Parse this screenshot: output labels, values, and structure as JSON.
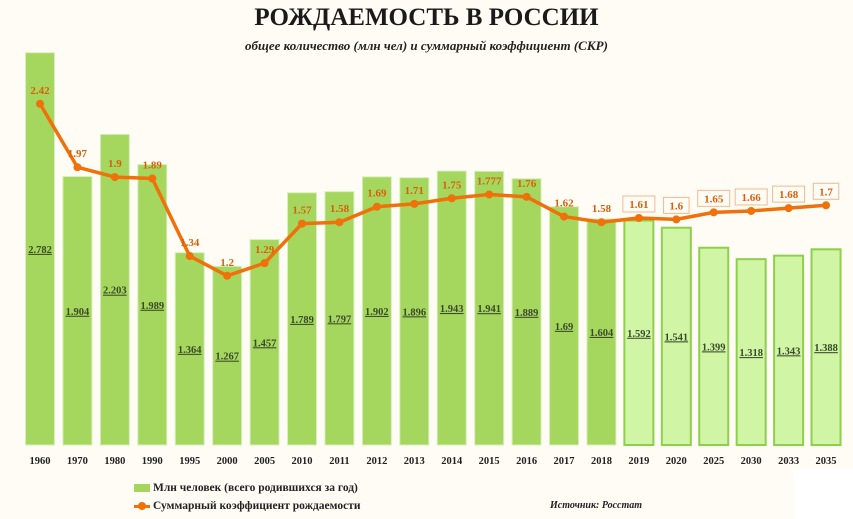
{
  "chart_data": {
    "type": "bar",
    "title": "РОЖДАЕМОСТЬ В РОССИИ",
    "subtitle": "общее количество (млн чел) и суммарный коэффициент (СКР)",
    "categories": [
      "1960",
      "1970",
      "1980",
      "1990",
      "1995",
      "2000",
      "2005",
      "2010",
      "2011",
      "2012",
      "2013",
      "2014",
      "2015",
      "2016",
      "2017",
      "2018",
      "2019",
      "2020",
      "2025",
      "2030",
      "2033",
      "2035"
    ],
    "series": [
      {
        "name": "Млн человек (всего родившихся за год)",
        "type": "bar",
        "values": [
          2.782,
          1.904,
          2.203,
          1.989,
          1.364,
          1.267,
          1.457,
          1.789,
          1.797,
          1.902,
          1.896,
          1.943,
          1.941,
          1.889,
          1.69,
          1.604,
          1.592,
          1.541,
          1.399,
          1.318,
          1.343,
          1.388
        ],
        "color": "#a5d65d",
        "forecast_color": "#d0f5a4",
        "forecast_from": "2019"
      },
      {
        "name": "Суммарный коэффициент рождаемости",
        "type": "line",
        "values": [
          2.42,
          1.97,
          1.9,
          1.89,
          1.34,
          1.2,
          1.29,
          1.57,
          1.58,
          1.69,
          1.71,
          1.75,
          1.777,
          1.76,
          1.62,
          1.58,
          1.61,
          1.6,
          1.65,
          1.66,
          1.68,
          1.7
        ],
        "color": "#f0700a"
      }
    ],
    "grid": false,
    "legend": "bottom-left",
    "source": "Источник: Росстат"
  }
}
